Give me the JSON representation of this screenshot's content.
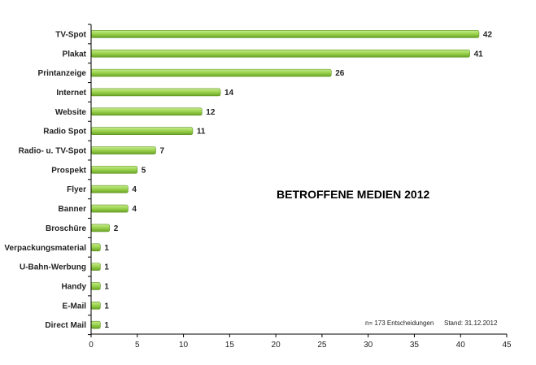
{
  "chart_data": {
    "type": "bar",
    "orientation": "horizontal",
    "title": "BETROFFENE MEDIEN 2012",
    "categories": [
      "TV-Spot",
      "Plakat",
      "Printanzeige",
      "Internet",
      "Website",
      "Radio Spot",
      "Radio- u. TV-Spot",
      "Prospekt",
      "Flyer",
      "Banner",
      "Broschüre",
      "Verpackungsmaterial",
      "U-Bahn-Werbung",
      "Handy",
      "E-Mail",
      "Direct Mail"
    ],
    "values": [
      42,
      41,
      26,
      14,
      12,
      11,
      7,
      5,
      4,
      4,
      2,
      1,
      1,
      1,
      1,
      1
    ],
    "xlim": [
      0,
      45
    ],
    "xticks": [
      0,
      5,
      10,
      15,
      20,
      25,
      30,
      35,
      40,
      45
    ],
    "grid": false,
    "legend": "none",
    "note_left": "n= 173 Entscheidungen",
    "note_right": "Stand: 31.12.2012",
    "colors": {
      "bar_light": "#c6ec8c",
      "bar_mid": "#99d14c",
      "bar_dark": "#6aa326",
      "axis": "#000000"
    }
  }
}
